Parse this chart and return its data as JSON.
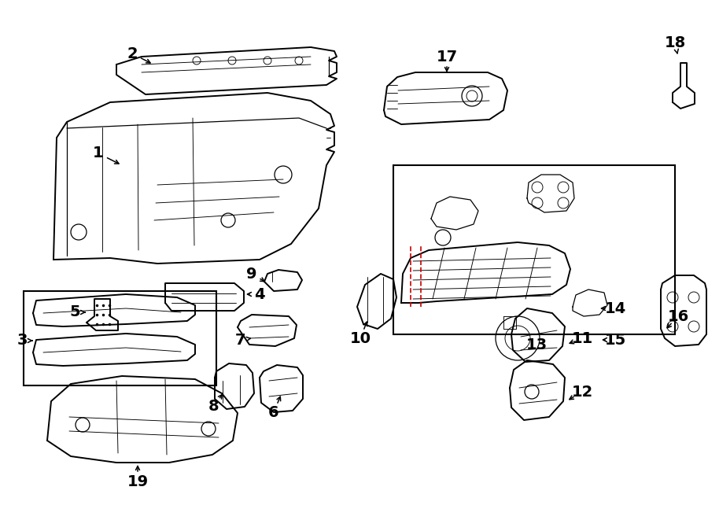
{
  "bg_color": "#ffffff",
  "line_color": "#000000",
  "red_color": "#cc0000",
  "fig_width": 9.0,
  "fig_height": 6.61,
  "dpi": 100
}
